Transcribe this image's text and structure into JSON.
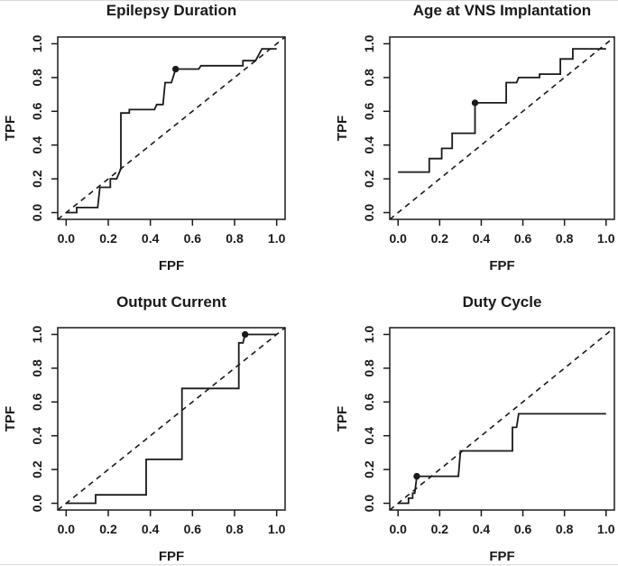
{
  "figure": {
    "background": "#ffffff",
    "ink_color": "#1a1a1a",
    "layout": "2x2 grid of ROC plots"
  },
  "chart_data": [
    {
      "type": "line",
      "subtype": "roc-step-curve",
      "title": "Epilepsy Duration",
      "xlabel": "FPF",
      "ylabel": "TPF",
      "xlim": [
        0,
        1
      ],
      "ylim": [
        0,
        1
      ],
      "xtick_labels": [
        "0.0",
        "0.2",
        "0.4",
        "0.6",
        "0.8",
        "1.0"
      ],
      "ytick_labels": [
        "0.0",
        "0.2",
        "0.4",
        "0.6",
        "0.8",
        "1.0"
      ],
      "grid": false,
      "reference_line": {
        "style": "dashed",
        "from": [
          0,
          0
        ],
        "to": [
          1,
          1
        ]
      },
      "series": [
        {
          "name": "ROC curve",
          "points": [
            [
              0,
              0
            ],
            [
              0.05,
              0
            ],
            [
              0.05,
              0.03
            ],
            [
              0.15,
              0.03
            ],
            [
              0.16,
              0.15
            ],
            [
              0.21,
              0.15
            ],
            [
              0.21,
              0.2
            ],
            [
              0.24,
              0.2
            ],
            [
              0.26,
              0.26
            ],
            [
              0.26,
              0.59
            ],
            [
              0.3,
              0.59
            ],
            [
              0.3,
              0.61
            ],
            [
              0.42,
              0.61
            ],
            [
              0.43,
              0.64
            ],
            [
              0.46,
              0.64
            ],
            [
              0.47,
              0.77
            ],
            [
              0.5,
              0.77
            ],
            [
              0.52,
              0.85
            ],
            [
              0.63,
              0.85
            ],
            [
              0.64,
              0.87
            ],
            [
              0.84,
              0.87
            ],
            [
              0.84,
              0.9
            ],
            [
              0.9,
              0.9
            ],
            [
              0.93,
              0.97
            ],
            [
              1.0,
              0.97
            ]
          ]
        }
      ],
      "marker_point": [
        0.52,
        0.85
      ]
    },
    {
      "type": "line",
      "subtype": "roc-step-curve",
      "title": "Age at VNS Implantation",
      "xlabel": "FPF",
      "ylabel": "TPF",
      "xlim": [
        0,
        1
      ],
      "ylim": [
        0,
        1
      ],
      "xtick_labels": [
        "0.0",
        "0.2",
        "0.4",
        "0.6",
        "0.8",
        "1.0"
      ],
      "ytick_labels": [
        "0.0",
        "0.2",
        "0.4",
        "0.6",
        "0.8",
        "1.0"
      ],
      "grid": false,
      "reference_line": {
        "style": "dashed",
        "from": [
          0,
          0
        ],
        "to": [
          1,
          1
        ]
      },
      "series": [
        {
          "name": "ROC curve",
          "points": [
            [
              0,
              0.24
            ],
            [
              0.15,
              0.24
            ],
            [
              0.15,
              0.32
            ],
            [
              0.21,
              0.32
            ],
            [
              0.21,
              0.38
            ],
            [
              0.26,
              0.38
            ],
            [
              0.26,
              0.47
            ],
            [
              0.37,
              0.47
            ],
            [
              0.37,
              0.65
            ],
            [
              0.52,
              0.65
            ],
            [
              0.52,
              0.77
            ],
            [
              0.57,
              0.77
            ],
            [
              0.58,
              0.8
            ],
            [
              0.68,
              0.8
            ],
            [
              0.68,
              0.82
            ],
            [
              0.78,
              0.82
            ],
            [
              0.78,
              0.91
            ],
            [
              0.84,
              0.91
            ],
            [
              0.84,
              0.97
            ],
            [
              1.0,
              0.97
            ]
          ]
        }
      ],
      "marker_point": [
        0.37,
        0.65
      ]
    },
    {
      "type": "line",
      "subtype": "roc-step-curve",
      "title": "Output Current",
      "xlabel": "FPF",
      "ylabel": "TPF",
      "xlim": [
        0,
        1
      ],
      "ylim": [
        0,
        1
      ],
      "xtick_labels": [
        "0.0",
        "0.2",
        "0.4",
        "0.6",
        "0.8",
        "1.0"
      ],
      "ytick_labels": [
        "0.0",
        "0.2",
        "0.4",
        "0.6",
        "0.8",
        "1.0"
      ],
      "grid": false,
      "reference_line": {
        "style": "dashed",
        "from": [
          0,
          0
        ],
        "to": [
          1,
          1
        ]
      },
      "series": [
        {
          "name": "ROC curve",
          "points": [
            [
              0,
              0
            ],
            [
              0.14,
              0
            ],
            [
              0.14,
              0.05
            ],
            [
              0.38,
              0.05
            ],
            [
              0.38,
              0.26
            ],
            [
              0.55,
              0.26
            ],
            [
              0.55,
              0.68
            ],
            [
              0.82,
              0.68
            ],
            [
              0.82,
              0.95
            ],
            [
              0.84,
              0.95
            ],
            [
              0.85,
              1.0
            ],
            [
              1.0,
              1.0
            ]
          ]
        }
      ],
      "marker_point": [
        0.85,
        1.0
      ]
    },
    {
      "type": "line",
      "subtype": "roc-step-curve",
      "title": "Duty Cycle",
      "xlabel": "FPF",
      "ylabel": "TPF",
      "xlim": [
        0,
        1
      ],
      "ylim": [
        0,
        1
      ],
      "xtick_labels": [
        "0.0",
        "0.2",
        "0.4",
        "0.6",
        "0.8",
        "1.0"
      ],
      "ytick_labels": [
        "0.0",
        "0.2",
        "0.4",
        "0.6",
        "0.8",
        "1.0"
      ],
      "grid": false,
      "reference_line": {
        "style": "dashed",
        "from": [
          0,
          0
        ],
        "to": [
          1,
          1
        ]
      },
      "series": [
        {
          "name": "ROC curve",
          "points": [
            [
              0,
              0
            ],
            [
              0.05,
              0
            ],
            [
              0.05,
              0.03
            ],
            [
              0.07,
              0.03
            ],
            [
              0.07,
              0.06
            ],
            [
              0.08,
              0.06
            ],
            [
              0.09,
              0.16
            ],
            [
              0.29,
              0.16
            ],
            [
              0.3,
              0.31
            ],
            [
              0.55,
              0.31
            ],
            [
              0.55,
              0.45
            ],
            [
              0.57,
              0.45
            ],
            [
              0.58,
              0.53
            ],
            [
              1.0,
              0.53
            ]
          ]
        }
      ],
      "marker_point": [
        0.09,
        0.16
      ]
    }
  ]
}
